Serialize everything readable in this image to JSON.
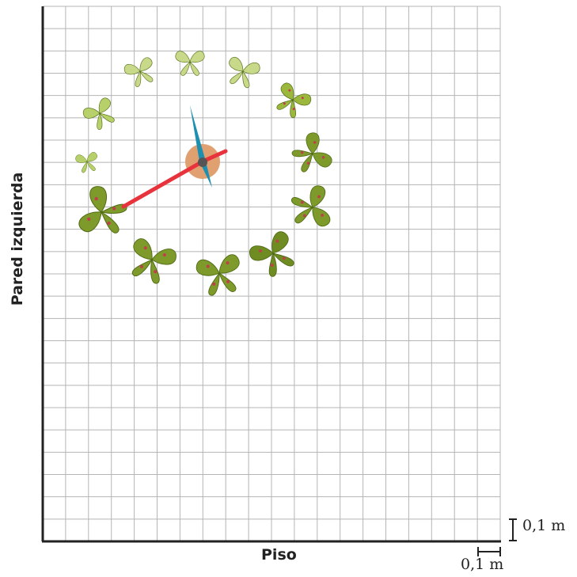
{
  "labels": {
    "wall": "Pared izquierda",
    "floor": "Piso",
    "scale_vertical": "0,1 m",
    "scale_horizontal": "0,1 m"
  },
  "grid": {
    "columns": 20,
    "rows": 24,
    "cell_size": "0,1 m"
  },
  "clock": {
    "hand_long_color": "#e8323c",
    "hand_short_color": "#1d8fb0",
    "hub_color": "#555555",
    "dial_color": "#e0a070"
  },
  "butterflies": [
    {
      "shade": "light",
      "color": "#c8d98a"
    },
    {
      "shade": "light",
      "color": "#c8d98a"
    },
    {
      "shade": "light",
      "color": "#c8d98a"
    },
    {
      "shade": "light",
      "color": "#b8d06a"
    },
    {
      "shade": "light",
      "color": "#b8d06a"
    },
    {
      "shade": "medium",
      "color": "#9bb83c"
    },
    {
      "shade": "dark",
      "color": "#7d9a2a"
    },
    {
      "shade": "dark",
      "color": "#7d9a2a"
    },
    {
      "shade": "dark",
      "color": "#6f8c22"
    },
    {
      "shade": "dark",
      "color": "#7d9a2a"
    },
    {
      "shade": "dark",
      "color": "#7d9a2a"
    },
    {
      "shade": "dark",
      "color": "#7d9a2a"
    },
    {
      "shade": "dark",
      "color": "#7d9a2a"
    }
  ]
}
